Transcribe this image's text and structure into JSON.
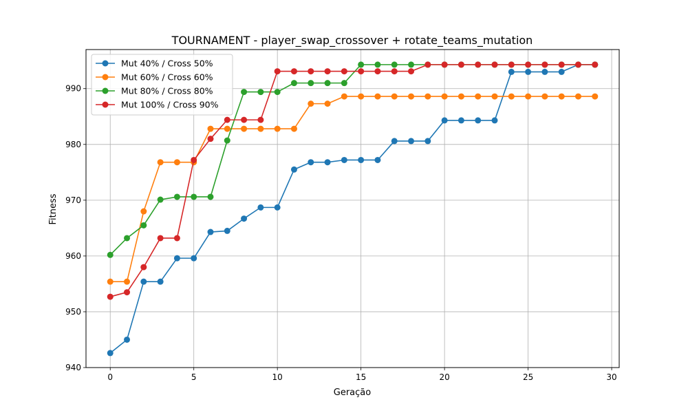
{
  "chart_data": {
    "type": "line",
    "title": "TOURNAMENT - player_swap_crossover + rotate_teams_mutation",
    "xlabel": "Geração",
    "ylabel": "Fitness",
    "xlim": [
      -1.45,
      30.45
    ],
    "ylim": [
      940,
      997
    ],
    "xticks": [
      0,
      5,
      10,
      15,
      20,
      25,
      30
    ],
    "yticks": [
      940,
      950,
      960,
      970,
      980,
      990
    ],
    "grid": true,
    "legend_position": "top-left",
    "x": [
      0,
      1,
      2,
      3,
      4,
      5,
      6,
      7,
      8,
      9,
      10,
      11,
      12,
      13,
      14,
      15,
      16,
      17,
      18,
      19,
      20,
      21,
      22,
      23,
      24,
      25,
      26,
      27,
      28,
      29
    ],
    "series": [
      {
        "name": "Mut 40% / Cross 50%",
        "color": "#1f77b4",
        "values": [
          942.6,
          945.0,
          955.4,
          955.4,
          959.6,
          959.6,
          964.3,
          964.5,
          966.7,
          968.7,
          968.7,
          975.5,
          976.8,
          976.8,
          977.2,
          977.2,
          977.2,
          980.6,
          980.6,
          980.6,
          984.3,
          984.3,
          984.3,
          984.3,
          993.0,
          993.0,
          993.0,
          993.0,
          994.3,
          994.3
        ]
      },
      {
        "name": "Mut 60% / Cross 60%",
        "color": "#ff7f0e",
        "values": [
          955.4,
          955.4,
          968.0,
          976.8,
          976.8,
          976.8,
          982.8,
          982.8,
          982.8,
          982.8,
          982.8,
          982.8,
          987.3,
          987.3,
          988.6,
          988.6,
          988.6,
          988.6,
          988.6,
          988.6,
          988.6,
          988.6,
          988.6,
          988.6,
          988.6,
          988.6,
          988.6,
          988.6,
          988.6,
          988.6
        ]
      },
      {
        "name": "Mut 80% / Cross 80%",
        "color": "#2ca02c",
        "values": [
          960.2,
          963.2,
          965.5,
          970.1,
          970.6,
          970.6,
          970.6,
          980.7,
          989.4,
          989.4,
          989.4,
          991.0,
          991.0,
          991.0,
          991.0,
          994.3,
          994.3,
          994.3,
          994.3,
          994.3,
          994.3,
          994.3,
          994.3,
          994.3,
          994.3,
          994.3,
          994.3,
          994.3,
          994.3,
          994.3
        ]
      },
      {
        "name": "Mut 100% / Cross 90%",
        "color": "#d62728",
        "values": [
          952.7,
          953.5,
          958.0,
          963.2,
          963.2,
          977.2,
          981.0,
          984.4,
          984.4,
          984.4,
          993.1,
          993.1,
          993.1,
          993.1,
          993.1,
          993.1,
          993.1,
          993.1,
          993.1,
          994.3,
          994.3,
          994.3,
          994.3,
          994.3,
          994.3,
          994.3,
          994.3,
          994.3,
          994.3,
          994.3
        ]
      }
    ]
  }
}
